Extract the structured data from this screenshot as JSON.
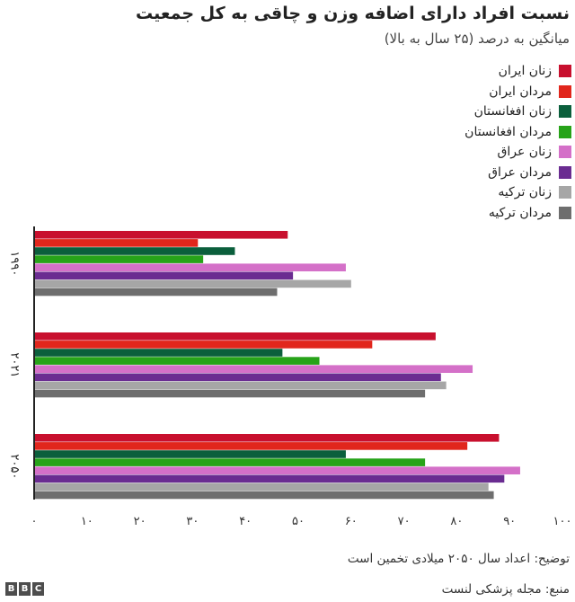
{
  "header": {
    "title": "نسبت افراد دارای اضافه وزن و چاقی به کل جمعیت",
    "subtitle": "میانگین به درصد (۲۵ سال به بالا)"
  },
  "footer": {
    "footnote": "توضیح: اعداد سال ۲۰۵۰ میلادی تخمین است",
    "source": "منبع: مجله پزشکی لنست",
    "logo_letters": [
      "B",
      "B",
      "C"
    ]
  },
  "chart_data": {
    "type": "bar",
    "orientation": "horizontal",
    "categories": [
      "۱۹۹۰",
      "۲۰۲۱",
      "۲۰۵۰"
    ],
    "xlim": [
      0,
      100
    ],
    "x_ticks": [
      0,
      10,
      20,
      30,
      40,
      50,
      60,
      70,
      80,
      90,
      100
    ],
    "x_tick_labels": [
      "۰",
      "۱۰",
      "۲۰",
      "۳۰",
      "۴۰",
      "۵۰",
      "۶۰",
      "۷۰",
      "۸۰",
      "۹۰",
      "۱۰۰"
    ],
    "grid": false,
    "legend_position": "top-right",
    "series": [
      {
        "name": "زنان ایران",
        "color": "#c8102e",
        "values": [
          48,
          76,
          88
        ]
      },
      {
        "name": "مردان ایران",
        "color": "#e1261c",
        "values": [
          31,
          64,
          82
        ]
      },
      {
        "name": "زنان افغانستان",
        "color": "#0b5f3c",
        "values": [
          38,
          47,
          59
        ]
      },
      {
        "name": "مردان افغانستان",
        "color": "#27a319",
        "values": [
          32,
          54,
          74
        ]
      },
      {
        "name": "زنان عراق",
        "color": "#d470c8",
        "values": [
          59,
          83,
          92
        ]
      },
      {
        "name": "مردان عراق",
        "color": "#6a2c91",
        "values": [
          49,
          77,
          89
        ]
      },
      {
        "name": "زنان ترکیه",
        "color": "#a6a6a6",
        "values": [
          60,
          78,
          86
        ]
      },
      {
        "name": "مردان ترکیه",
        "color": "#6e6e6e",
        "values": [
          46,
          74,
          87
        ]
      }
    ]
  }
}
